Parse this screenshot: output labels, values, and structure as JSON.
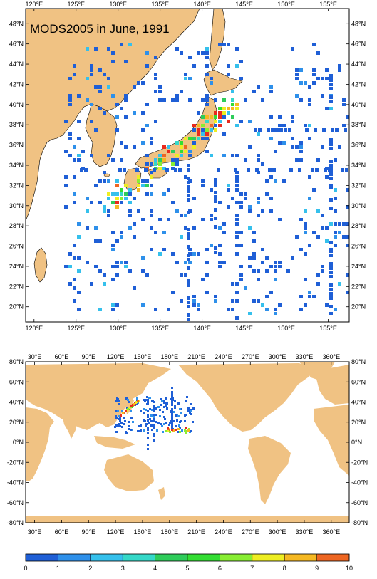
{
  "top_map": {
    "title": "MODS2005 in June, 1991",
    "x_ticks": [
      "120°E",
      "125°E",
      "130°E",
      "135°E",
      "140°E",
      "145°E",
      "150°E",
      "155°E"
    ],
    "y_ticks": [
      "48°N",
      "46°N",
      "44°N",
      "42°N",
      "40°N",
      "38°N",
      "36°N",
      "34°N",
      "32°N",
      "30°N",
      "28°N",
      "26°N",
      "24°N",
      "22°N",
      "20°N"
    ],
    "lon_range": [
      119,
      157.5
    ],
    "lat_range": [
      18.5,
      49.5
    ]
  },
  "bottom_map": {
    "x_ticks": [
      "30°E",
      "60°E",
      "90°E",
      "120°E",
      "150°E",
      "180°E",
      "210°E",
      "240°E",
      "270°E",
      "300°E",
      "330°E",
      "360°E"
    ],
    "y_ticks": [
      "80°N",
      "60°N",
      "40°N",
      "20°N",
      "0°N",
      "-20°N",
      "-40°N",
      "-60°N",
      "-80°N"
    ],
    "lon_range": [
      20,
      380
    ],
    "lat_range": [
      -80,
      80
    ]
  },
  "colorbar": {
    "labels": [
      "0",
      "1",
      "2",
      "3",
      "4",
      "5",
      "6",
      "7",
      "8",
      "9",
      "10"
    ],
    "colors": [
      "#1f5fd6",
      "#2e90ea",
      "#35c0ec",
      "#35d8c8",
      "#2ecc5a",
      "#33dd33",
      "#88ee33",
      "#eeee22",
      "#f5b822",
      "#ee6622",
      "#e82a1e"
    ]
  },
  "style": {
    "land_color": "#f0c283",
    "ocean_color": "#ffffff"
  }
}
